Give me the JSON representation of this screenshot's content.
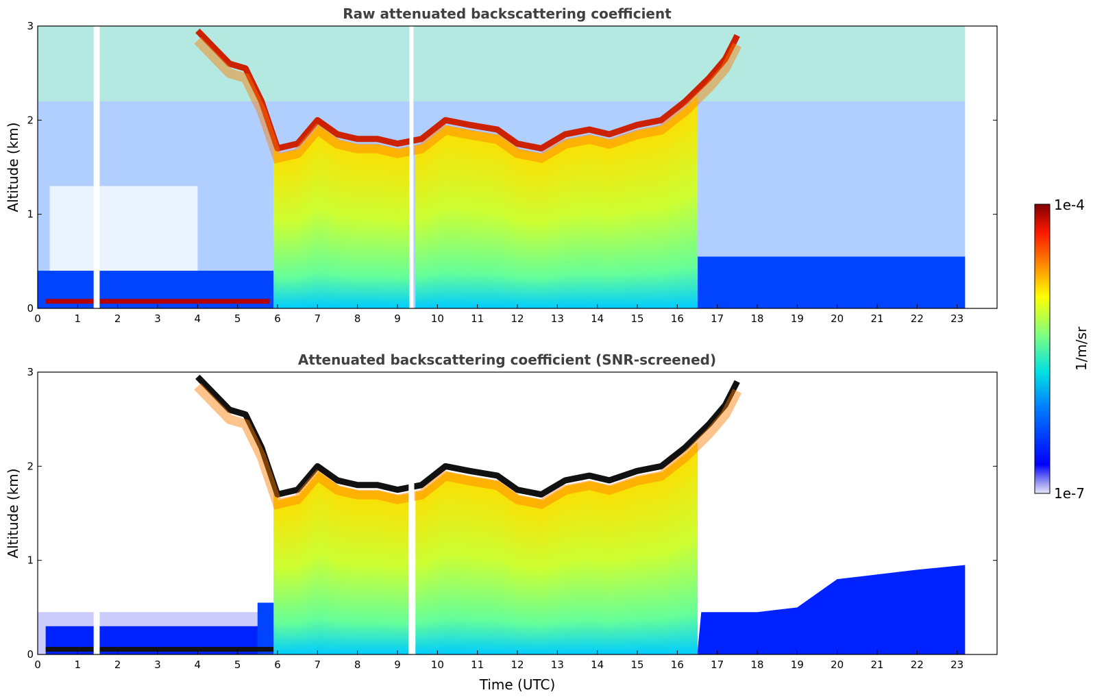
{
  "chart_data": [
    {
      "type": "heatmap",
      "title": "Raw attenuated backscattering coefficient",
      "xlabel": "",
      "ylabel": "Altitude (km)",
      "xlim": [
        0,
        24
      ],
      "ylim": [
        0,
        3
      ],
      "xticks": [
        0,
        1,
        2,
        3,
        4,
        5,
        6,
        7,
        8,
        9,
        10,
        11,
        12,
        13,
        14,
        15,
        16,
        17,
        18,
        19,
        20,
        21,
        22,
        23
      ],
      "yticks": [
        0,
        1,
        2,
        3
      ],
      "data_end_hour": 23.2,
      "colorscale": "jet",
      "features": {
        "cloud_top_km": [
          [
            4.0,
            2.95
          ],
          [
            4.8,
            2.6
          ],
          [
            5.2,
            2.55
          ],
          [
            5.6,
            2.2
          ],
          [
            6.0,
            1.7
          ],
          [
            6.5,
            1.75
          ],
          [
            7.0,
            2.0
          ],
          [
            7.5,
            1.85
          ],
          [
            8.0,
            1.8
          ],
          [
            8.5,
            1.8
          ],
          [
            9.0,
            1.75
          ],
          [
            9.6,
            1.8
          ],
          [
            10.2,
            2.0
          ],
          [
            10.8,
            1.95
          ],
          [
            11.5,
            1.9
          ],
          [
            12.0,
            1.75
          ],
          [
            12.6,
            1.7
          ],
          [
            13.2,
            1.85
          ],
          [
            13.8,
            1.9
          ],
          [
            14.3,
            1.85
          ],
          [
            15.0,
            1.95
          ],
          [
            15.6,
            2.0
          ],
          [
            16.2,
            2.2
          ],
          [
            16.8,
            2.45
          ],
          [
            17.2,
            2.65
          ],
          [
            17.5,
            2.9
          ]
        ],
        "cloud_base_km": [
          [
            5.9,
            0.0
          ],
          [
            16.5,
            0.0
          ]
        ],
        "gaps_hours": [
          [
            1.4,
            1.55
          ],
          [
            9.3,
            9.4
          ]
        ],
        "surface_layer_km": [
          [
            0.0,
            0.1
          ],
          [
            5.5,
            0.1
          ],
          [
            7.5,
            0.08
          ]
        ],
        "clear_sky_hours": [
          [
            0.0,
            5.8
          ],
          [
            16.6,
            23.2
          ]
        ]
      }
    },
    {
      "type": "heatmap",
      "title": "Attenuated backscattering coefficient (SNR-screened)",
      "xlabel": "Time (UTC)",
      "ylabel": "Altitude (km)",
      "xlim": [
        0,
        24
      ],
      "ylim": [
        0,
        3
      ],
      "xticks": [
        0,
        1,
        2,
        3,
        4,
        5,
        6,
        7,
        8,
        9,
        10,
        11,
        12,
        13,
        14,
        15,
        16,
        17,
        18,
        19,
        20,
        21,
        22,
        23
      ],
      "yticks": [
        0,
        1,
        2,
        3
      ],
      "data_end_hour": 23.2,
      "colorscale": "jet",
      "features": {
        "boundary_layer_top_km": [
          [
            0.0,
            0.45
          ],
          [
            1.0,
            0.4
          ],
          [
            2.0,
            0.3
          ],
          [
            3.0,
            0.2
          ],
          [
            4.0,
            0.2
          ],
          [
            5.0,
            0.3
          ],
          [
            5.6,
            0.5
          ],
          [
            16.6,
            0.45
          ],
          [
            18.0,
            0.45
          ],
          [
            19.0,
            0.5
          ],
          [
            20.0,
            0.8
          ],
          [
            21.0,
            0.85
          ],
          [
            22.0,
            0.9
          ],
          [
            23.2,
            0.95
          ]
        ]
      }
    }
  ],
  "colorbar": {
    "label": "1/m/sr",
    "max_label": "1e-4",
    "min_label": "1e-7",
    "colors": [
      "#e6e6fa",
      "#b0b0f0",
      "#7a7aff",
      "#0000ff",
      "#0033ff",
      "#0066ff",
      "#0099ff",
      "#00ccff",
      "#00e5e5",
      "#33ffcc",
      "#66ff99",
      "#99ff66",
      "#ccff33",
      "#ffff00",
      "#ffcc00",
      "#ff9900",
      "#ff6600",
      "#ff3300",
      "#e60000",
      "#b30000",
      "#800000"
    ]
  }
}
